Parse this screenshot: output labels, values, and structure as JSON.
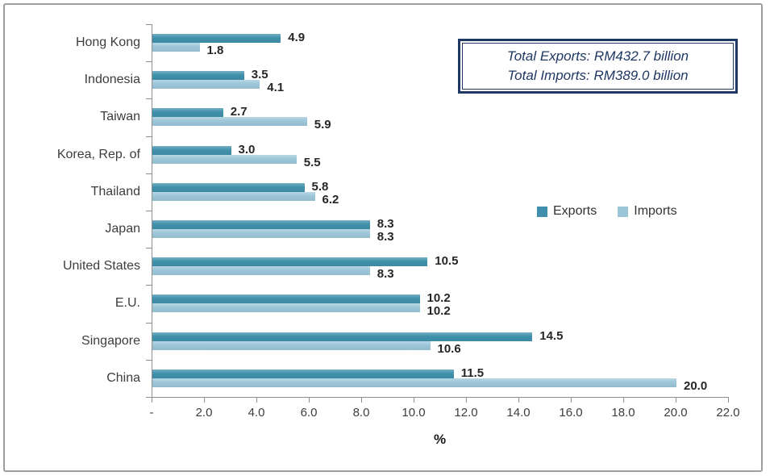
{
  "info_box": {
    "line1": "Total Exports: RM432.7 billion",
    "line2": "Total Imports: RM389.0 billion"
  },
  "colors": {
    "exports": "#4090ab",
    "imports": "#9cc6d8",
    "box_border": "#1f3864",
    "box_text": "#1f3864",
    "axis": "#8f8f8f",
    "label_text": "#3d3d3d",
    "value_text": "#262626",
    "frame": "#9d9d9d"
  },
  "chart_data": {
    "type": "bar",
    "orientation": "horizontal",
    "title": "",
    "xlabel": "%",
    "xlim": [
      0,
      22
    ],
    "x_tick_step": 2,
    "x_ticks": [
      "-",
      "2.0",
      "4.0",
      "6.0",
      "8.0",
      "10.0",
      "12.0",
      "14.0",
      "16.0",
      "18.0",
      "20.0",
      "22.0"
    ],
    "grid": false,
    "legend_position": "middle-right",
    "categories": [
      "Hong Kong",
      "Indonesia",
      "Taiwan",
      "Korea, Rep. of",
      "Thailand",
      "Japan",
      "United States",
      "E.U.",
      "Singapore",
      "China"
    ],
    "series": [
      {
        "name": "Exports",
        "color": "#4090ab",
        "values": [
          4.9,
          3.5,
          2.7,
          3.0,
          5.8,
          8.3,
          10.5,
          10.2,
          14.5,
          11.5
        ]
      },
      {
        "name": "Imports",
        "color": "#9cc6d8",
        "values": [
          1.8,
          4.1,
          5.9,
          5.5,
          6.2,
          8.3,
          8.3,
          10.2,
          10.6,
          20.0
        ]
      }
    ],
    "value_label_decimals": 1
  }
}
